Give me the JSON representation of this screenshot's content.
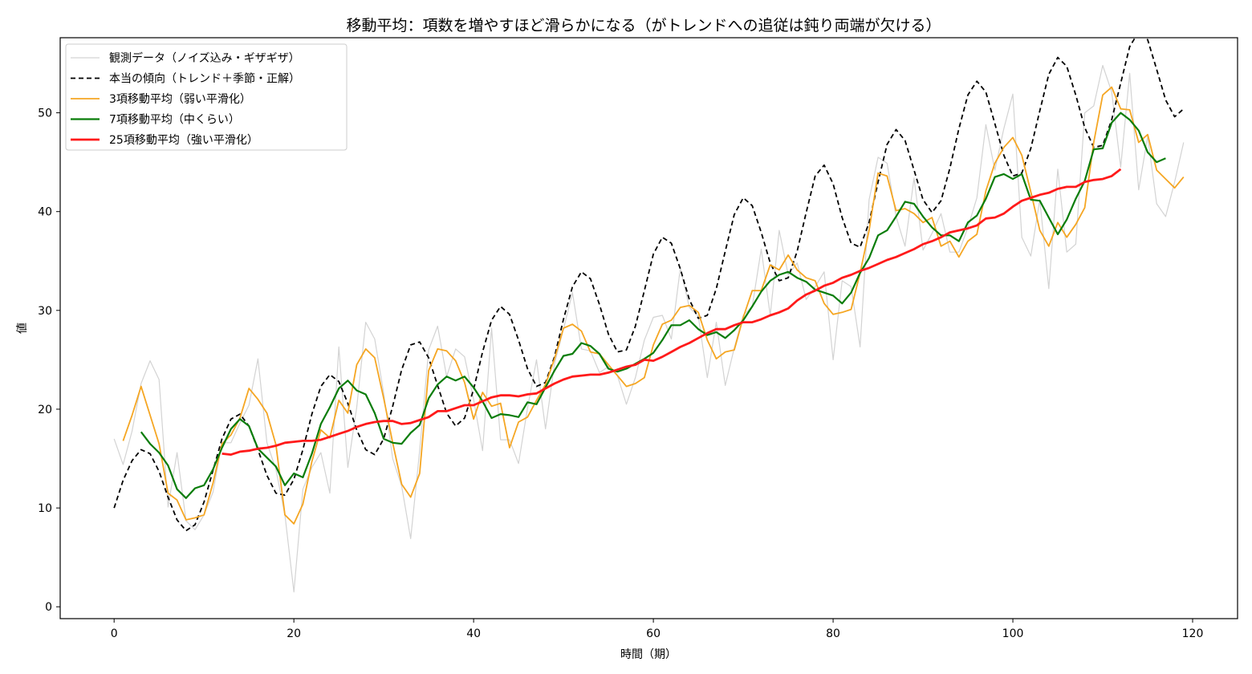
{
  "chart_data": {
    "type": "line",
    "title": "移動平均：項数を増やすほど滑らかになる（がトレンドへの追従は鈍り両端が欠ける）",
    "xlabel": "時間（期）",
    "ylabel": "値",
    "xlim": [
      -6,
      125
    ],
    "ylim": [
      -1.2,
      57.6
    ],
    "xticks": [
      0,
      20,
      40,
      60,
      80,
      100,
      120
    ],
    "yticks": [
      0,
      10,
      20,
      30,
      40,
      50
    ],
    "legend_position": "upper-left",
    "grid": false,
    "series": [
      {
        "name": "観測データ（ノイズ込み・ギザギザ）",
        "color": "#d3d3d3",
        "style": "solid",
        "width": 1.2,
        "x_start": 0,
        "values": [
          17.0,
          14.4,
          17.8,
          22.6,
          24.9,
          23.0,
          10.1,
          15.6,
          8.7,
          7.8,
          9.3,
          11.6,
          16.6,
          16.6,
          18.6,
          20.4,
          25.1,
          16.6,
          13.9,
          9.3,
          1.5,
          11.9,
          14.1,
          15.6,
          11.5,
          26.3,
          14.1,
          20.2,
          28.8,
          27.1,
          21.6,
          15.0,
          12.2,
          6.9,
          15.8,
          26.0,
          28.4,
          23.3,
          26.1,
          25.3,
          21.0,
          15.8,
          28.2,
          16.9,
          16.9,
          14.5,
          20.1,
          25.0,
          18.0,
          24.6,
          28.1,
          31.8,
          26.1,
          25.9,
          23.7,
          24.3,
          23.4,
          20.5,
          23.2,
          27.0,
          29.3,
          29.5,
          27.1,
          34.3,
          30.3,
          29.4,
          23.2,
          28.8,
          22.4,
          26.2,
          29.5,
          30.4,
          36.2,
          29.5,
          38.1,
          33.6,
          34.8,
          31.1,
          32.4,
          33.9,
          25.0,
          33.0,
          32.4,
          26.3,
          41.2,
          45.5,
          44.9,
          39.5,
          36.5,
          43.4,
          36.1,
          37.8,
          39.8,
          35.9,
          35.9,
          38.4,
          41.4,
          48.8,
          44.2,
          48.4,
          51.9,
          37.4,
          35.5,
          41.2,
          32.2,
          44.3,
          35.9,
          36.7,
          50.0,
          50.7,
          54.8,
          52.1,
          44.5,
          54.0,
          42.2,
          47.6,
          40.8,
          39.5,
          43.0,
          47.0
        ]
      },
      {
        "name": "本当の傾向（トレンド＋季節・正解）",
        "color": "#000000",
        "style": "dashed",
        "width": 1.8,
        "x_start": 0,
        "values": [
          10.0,
          12.8,
          14.8,
          15.9,
          15.5,
          13.7,
          11.1,
          8.8,
          7.7,
          8.3,
          10.6,
          13.8,
          17.0,
          19.0,
          19.5,
          18.3,
          15.9,
          13.3,
          11.5,
          11.3,
          12.9,
          15.9,
          19.5,
          22.3,
          23.5,
          22.8,
          20.6,
          17.9,
          15.9,
          15.4,
          17.0,
          20.3,
          24.0,
          26.5,
          26.8,
          25.2,
          22.4,
          19.6,
          18.3,
          19.1,
          22.0,
          25.8,
          29.0,
          30.4,
          29.6,
          27.0,
          24.1,
          22.3,
          22.7,
          25.3,
          29.1,
          32.4,
          33.9,
          33.2,
          30.6,
          27.6,
          25.8,
          26.0,
          28.4,
          32.0,
          35.7,
          37.4,
          36.8,
          34.2,
          31.1,
          29.2,
          29.5,
          32.2,
          36.0,
          39.7,
          41.4,
          40.6,
          37.9,
          34.8,
          33.0,
          33.3,
          36.0,
          39.9,
          43.6,
          44.7,
          42.8,
          39.4,
          36.8,
          36.4,
          38.9,
          43.0,
          46.8,
          48.3,
          47.2,
          44.2,
          41.2,
          39.9,
          41.1,
          44.4,
          48.4,
          51.8,
          53.2,
          52.1,
          48.9,
          45.7,
          43.6,
          43.9,
          46.4,
          50.2,
          53.9,
          55.6,
          54.7,
          51.8,
          48.5,
          46.5,
          46.7,
          49.3,
          53.0,
          56.7,
          58.2,
          57.4,
          54.4,
          51.3,
          49.6,
          50.4
        ]
      },
      {
        "name": "3項移動平均（弱い平滑化）",
        "color": "#f5a623",
        "style": "solid",
        "width": 1.8,
        "x_start": 1,
        "values": [
          16.8,
          19.4,
          22.3,
          19.4,
          16.5,
          11.5,
          10.8,
          8.8,
          9.0,
          9.3,
          12.5,
          16.5,
          17.4,
          19.1,
          22.1,
          21.0,
          19.6,
          16.4,
          9.3,
          8.4,
          10.4,
          14.7,
          17.9,
          17.1,
          20.9,
          19.6,
          24.5,
          26.1,
          25.2,
          21.1,
          16.6,
          12.4,
          11.1,
          13.5,
          23.9,
          26.1,
          25.9,
          24.9,
          22.7,
          19.0,
          21.7,
          20.3,
          20.6,
          16.1,
          18.7,
          19.2,
          20.9,
          22.5,
          25.1,
          28.2,
          28.6,
          27.9,
          25.8,
          25.6,
          24.5,
          23.4,
          22.3,
          22.6,
          23.2,
          26.5,
          28.6,
          29.0,
          30.3,
          30.5,
          29.8,
          27.0,
          25.1,
          25.8,
          26.0,
          29.3,
          32.0,
          32.0,
          34.6,
          34.1,
          35.6,
          34.1,
          33.3,
          33.0,
          30.7,
          29.6,
          29.8,
          30.1,
          33.8,
          38.1,
          43.9,
          43.6,
          40.1,
          40.3,
          39.8,
          38.9,
          39.4,
          36.5,
          37.0,
          35.4,
          37.0,
          37.7,
          42.1,
          44.9,
          46.5,
          47.5,
          45.7,
          42.0,
          38.1,
          36.5,
          38.9,
          37.4,
          38.7,
          40.4,
          47.0,
          51.8,
          52.6,
          50.4,
          50.3,
          47.0,
          47.8,
          44.2,
          43.3,
          42.4,
          43.5
        ]
      },
      {
        "name": "7項移動平均（中くらい）",
        "color": "#0a7d0a",
        "style": "solid",
        "width": 2.2,
        "x_start": 3,
        "values": [
          17.7,
          16.5,
          15.6,
          14.3,
          11.9,
          11.0,
          12.0,
          12.3,
          13.9,
          16.1,
          18.0,
          19.0,
          18.3,
          16.0,
          15.1,
          14.2,
          12.3,
          13.5,
          13.1,
          15.5,
          18.5,
          20.2,
          22.1,
          22.9,
          21.9,
          21.5,
          19.6,
          17.0,
          16.6,
          16.5,
          17.6,
          18.4,
          21.1,
          22.5,
          23.3,
          22.9,
          23.3,
          22.2,
          20.8,
          19.1,
          19.5,
          19.4,
          19.2,
          20.7,
          20.5,
          22.2,
          23.9,
          25.4,
          25.6,
          26.7,
          26.4,
          25.6,
          24.1,
          23.8,
          24.1,
          24.6,
          25.1,
          25.7,
          27.0,
          28.5,
          28.5,
          29.0,
          28.1,
          27.5,
          27.8,
          27.2,
          28.0,
          29.0,
          30.4,
          31.9,
          33.0,
          33.6,
          33.9,
          33.3,
          32.9,
          32.1,
          31.8,
          31.5,
          30.7,
          31.8,
          33.8,
          35.3,
          37.6,
          38.1,
          39.5,
          41.0,
          40.8,
          39.5,
          38.4,
          37.6,
          37.6,
          37.0,
          38.9,
          39.6,
          41.3,
          43.5,
          43.8,
          43.3,
          43.8,
          41.2,
          41.1,
          39.4,
          37.7,
          39.2,
          41.3,
          43.1,
          46.3,
          46.4,
          49.0,
          50.0,
          49.3,
          48.2,
          46.0,
          45.0,
          45.4
        ]
      },
      {
        "name": "25項移動平均（強い平滑化）",
        "color": "#ff1a1a",
        "style": "solid",
        "width": 2.8,
        "x_start": 12,
        "values": [
          15.5,
          15.4,
          15.7,
          15.8,
          16.0,
          16.1,
          16.3,
          16.6,
          16.7,
          16.8,
          16.8,
          16.9,
          17.2,
          17.5,
          17.8,
          18.2,
          18.5,
          18.7,
          18.8,
          18.8,
          18.5,
          18.6,
          18.9,
          19.2,
          19.8,
          19.8,
          20.1,
          20.4,
          20.4,
          20.8,
          21.2,
          21.4,
          21.4,
          21.3,
          21.5,
          21.6,
          22.1,
          22.6,
          23.0,
          23.3,
          23.4,
          23.5,
          23.5,
          23.7,
          24.0,
          24.3,
          24.5,
          25.0,
          24.9,
          25.3,
          25.8,
          26.3,
          26.7,
          27.2,
          27.7,
          28.1,
          28.1,
          28.5,
          28.8,
          28.8,
          29.1,
          29.5,
          29.8,
          30.2,
          31.0,
          31.6,
          32.0,
          32.5,
          32.8,
          33.3,
          33.6,
          34.0,
          34.3,
          34.7,
          35.1,
          35.4,
          35.8,
          36.2,
          36.7,
          37.0,
          37.4,
          37.9,
          38.1,
          38.3,
          38.6,
          39.3,
          39.4,
          39.8,
          40.5,
          41.1,
          41.4,
          41.7,
          41.9,
          42.3,
          42.5,
          42.5,
          43.0,
          43.2,
          43.3,
          43.6,
          44.3
        ]
      }
    ]
  }
}
